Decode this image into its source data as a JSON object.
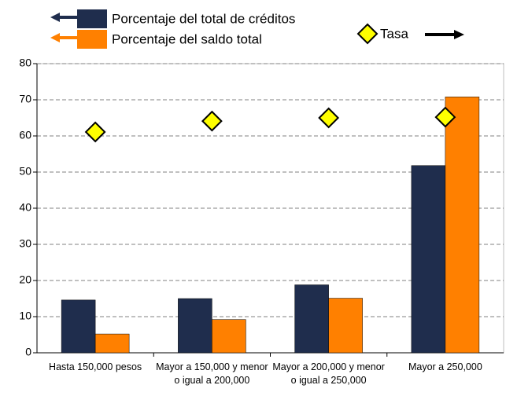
{
  "chart_data": {
    "type": "bar",
    "categories": [
      "Hasta 150,000 pesos",
      "Mayor a 150,000 y menor o igual a 200,000",
      "Mayor a 200,000 y menor o igual a 250,000",
      "Mayor a 250,000"
    ],
    "series": [
      {
        "name": "Porcentaje del total de créditos",
        "color": "#1f2d4d",
        "type": "bar",
        "values": [
          14.6,
          15.0,
          18.8,
          51.8
        ]
      },
      {
        "name": "Porcentaje del saldo total",
        "color": "#ff8000",
        "type": "bar",
        "values": [
          5.2,
          9.2,
          15.1,
          70.8
        ]
      },
      {
        "name": "Tasa",
        "color": "#ffff00",
        "type": "scatter",
        "values": [
          61.1,
          64.1,
          65.0,
          65.2
        ]
      }
    ],
    "ylim": [
      0,
      80
    ],
    "yticks": [
      0,
      10,
      20,
      30,
      40,
      50,
      60,
      70,
      80
    ],
    "grid": true
  }
}
